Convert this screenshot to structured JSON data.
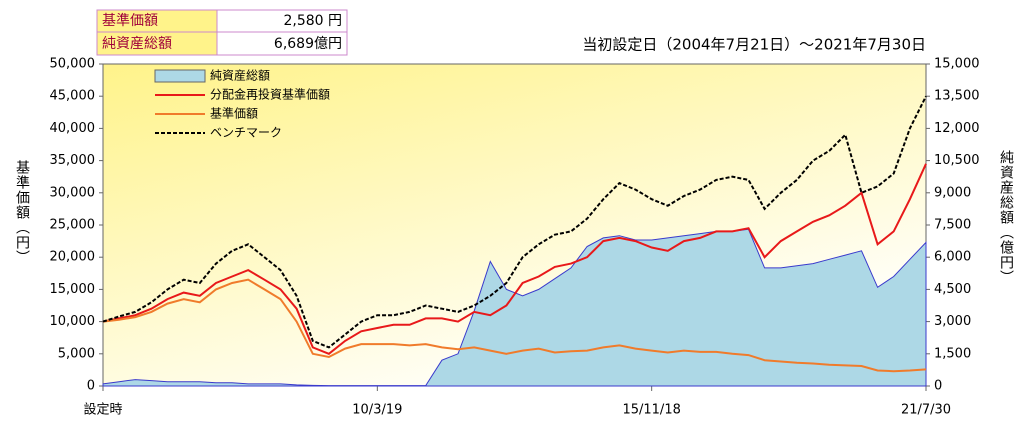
{
  "info": [
    {
      "label": "基準価額",
      "value": "2,580 円"
    },
    {
      "label": "純資産総額",
      "value": "6,689億円"
    }
  ],
  "chart_data": {
    "type": "line",
    "title": "当初設定日（2004年7月21日）～2021年7月30日",
    "ylabel": "基準価額（円）",
    "y2label": "純資産総額（億円）",
    "categories": [
      "設定時",
      null,
      null,
      null,
      null,
      null,
      null,
      null,
      null,
      null,
      null,
      null,
      null,
      null,
      null,
      null,
      null,
      "10/3/19",
      null,
      null,
      null,
      null,
      null,
      null,
      null,
      null,
      null,
      null,
      null,
      null,
      null,
      null,
      null,
      null,
      "15/11/18",
      null,
      null,
      null,
      null,
      null,
      null,
      null,
      null,
      null,
      null,
      null,
      null,
      null,
      null,
      null,
      null,
      "21/7/30"
    ],
    "series": [
      {
        "name": "純資産総額",
        "type": "area",
        "axis": "y2",
        "color": "#add8e6",
        "line_color": "#3a3acc",
        "values": [
          100,
          200,
          300,
          250,
          200,
          200,
          200,
          150,
          150,
          100,
          100,
          100,
          50,
          30,
          20,
          20,
          20,
          20,
          20,
          20,
          20,
          1200,
          1500,
          3500,
          5800,
          4500,
          4200,
          4500,
          5000,
          5500,
          6500,
          6900,
          7000,
          6800,
          6800,
          6900,
          7000,
          7100,
          7200,
          7200,
          7300,
          5500,
          5500,
          5600,
          5700,
          5900,
          6100,
          6300,
          4600,
          5100,
          5900,
          6689
        ]
      },
      {
        "name": "分配金再投資基準価額",
        "type": "line",
        "color": "#e8191a",
        "values": [
          10000,
          10500,
          11000,
          12000,
          13500,
          14500,
          14000,
          16000,
          17000,
          18000,
          16500,
          15000,
          12000,
          6000,
          5000,
          7000,
          8500,
          9000,
          9500,
          9500,
          10500,
          10500,
          10000,
          11500,
          11000,
          12500,
          16000,
          17000,
          18500,
          19000,
          20000,
          22500,
          23000,
          22500,
          21500,
          21000,
          22500,
          23000,
          24000,
          24000,
          24500,
          20000,
          22500,
          24000,
          25500,
          26500,
          28000,
          30000,
          22000,
          24000,
          29000,
          34500
        ]
      },
      {
        "name": "基準価額",
        "type": "line",
        "color": "#f07b2b",
        "values": [
          10000,
          10300,
          10700,
          11500,
          12800,
          13500,
          13000,
          15000,
          16000,
          16500,
          15000,
          13500,
          10000,
          5000,
          4500,
          5800,
          6500,
          6500,
          6500,
          6300,
          6500,
          6000,
          5700,
          6000,
          5500,
          5000,
          5500,
          5800,
          5200,
          5400,
          5500,
          6000,
          6300,
          5800,
          5500,
          5200,
          5500,
          5300,
          5300,
          5000,
          4800,
          4000,
          3800,
          3600,
          3500,
          3300,
          3200,
          3100,
          2400,
          2300,
          2400,
          2580
        ]
      },
      {
        "name": "ベンチマーク",
        "type": "line",
        "dashed": true,
        "color": "#000000",
        "values": [
          10000,
          10800,
          11500,
          13000,
          15000,
          16500,
          16000,
          19000,
          21000,
          22000,
          20000,
          18000,
          14000,
          7000,
          6000,
          8000,
          10000,
          11000,
          11000,
          11500,
          12500,
          12000,
          11500,
          12500,
          14000,
          16000,
          20000,
          22000,
          23500,
          24000,
          26000,
          29000,
          31500,
          30500,
          29000,
          28000,
          29500,
          30500,
          32000,
          32500,
          32000,
          27500,
          30000,
          32000,
          35000,
          36500,
          39000,
          30000,
          31000,
          33000,
          40000,
          45000
        ]
      }
    ],
    "ylim": [
      0,
      50000
    ],
    "yticks": [
      0,
      {
        "value": 5000,
        "label": "5,000"
      },
      {
        "value": 10000,
        "label": "10,000"
      },
      {
        "value": 15000,
        "label": "15,000"
      },
      {
        "value": 20000,
        "label": "20,000"
      },
      {
        "value": 25000,
        "label": "25,000"
      },
      {
        "value": 30000,
        "label": "30,000"
      },
      {
        "value": 35000,
        "label": "35,000"
      },
      {
        "value": 40000,
        "label": "40,000"
      },
      {
        "value": 45000,
        "label": "45,000"
      },
      {
        "value": 50000,
        "label": "50,000"
      }
    ],
    "y2lim": [
      0,
      15000
    ],
    "y2ticks": [
      0,
      {
        "value": 1500,
        "label": "1,500"
      },
      {
        "value": 3000,
        "label": "3,000"
      },
      {
        "value": 4500,
        "label": "4,500"
      },
      {
        "value": 6000,
        "label": "6,000"
      },
      {
        "value": 7500,
        "label": "7,500"
      },
      {
        "value": 9000,
        "label": "9,000"
      },
      {
        "value": 10500,
        "label": "10,500"
      },
      {
        "value": 12000,
        "label": "12,000"
      },
      {
        "value": 13500,
        "label": "13,500"
      },
      {
        "value": 15000,
        "label": "15,000"
      }
    ]
  }
}
